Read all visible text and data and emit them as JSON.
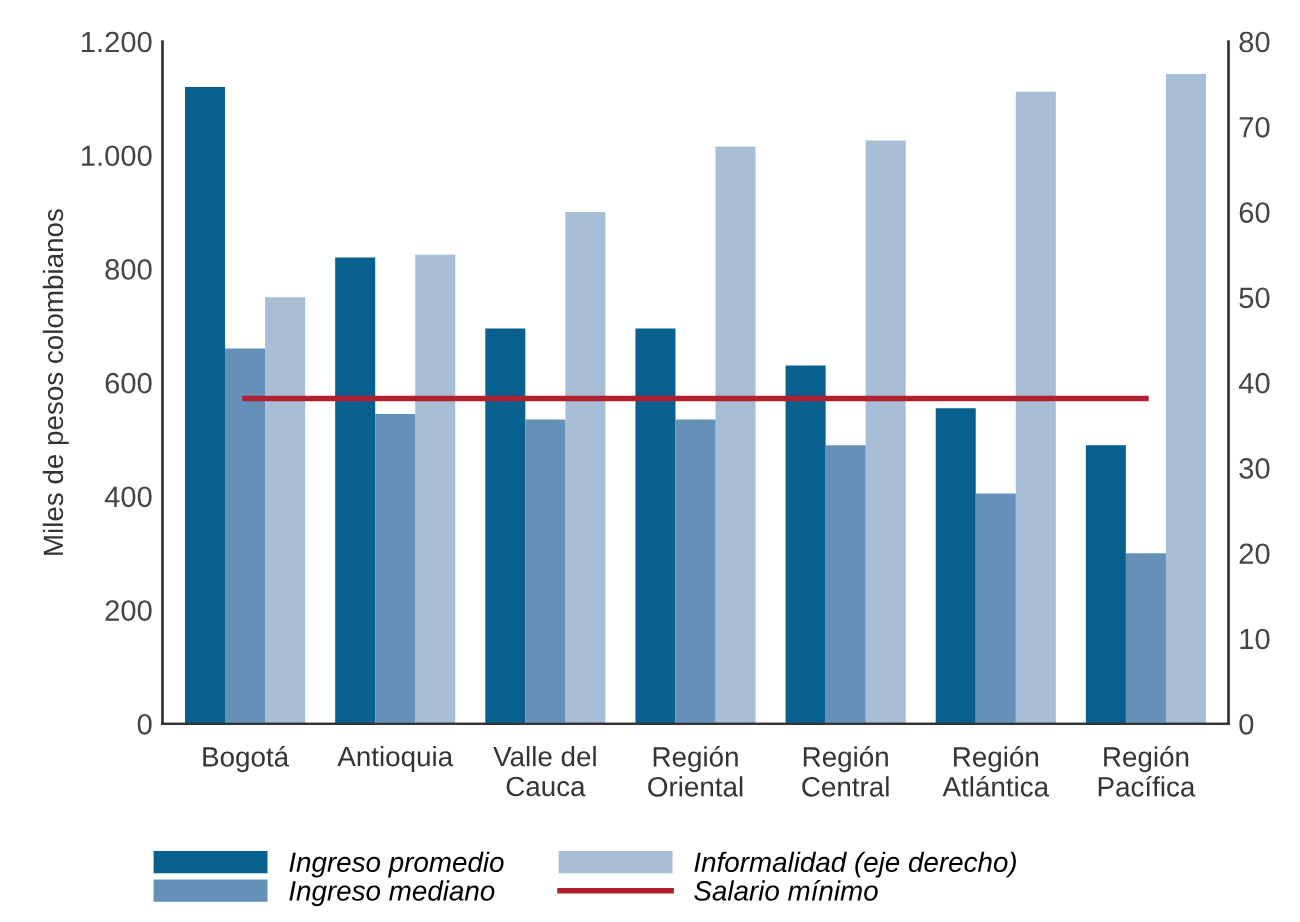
{
  "chart_data": {
    "type": "bar",
    "ylabel": "Miles de pesos colombianos",
    "categories": [
      "Bogotá",
      "Antioquia",
      "Valle del\nCauca",
      "Región\nOriental",
      "Región\nCentral",
      "Región\nAtlántica",
      "Región\nPacífica"
    ],
    "series": [
      {
        "name": "Ingreso promedio",
        "color": "#08608f",
        "values": [
          1120,
          820,
          695,
          695,
          630,
          555,
          490
        ]
      },
      {
        "name": "Ingreso mediano",
        "color": "#6590b8",
        "values": [
          660,
          545,
          535,
          535,
          490,
          405,
          300
        ]
      },
      {
        "name": "Informalidad (eje derecho)",
        "color": "#a8bdd6",
        "axis": "y2",
        "values": [
          50,
          55,
          60,
          67.7,
          68.4,
          74.1,
          76.2
        ]
      },
      {
        "name": "Salario mínimo",
        "color": "#b0202e",
        "type": "line",
        "values": [
          572,
          572,
          572,
          572,
          572,
          572,
          572
        ]
      }
    ],
    "ylim": [
      0,
      1200
    ],
    "yticks": [
      0,
      200,
      400,
      600,
      800,
      {
        "value": 1000,
        "label": "1.000"
      },
      {
        "value": 1200,
        "label": "1.200"
      }
    ],
    "y2lim": [
      0,
      80
    ],
    "y2ticks": [
      0,
      10,
      20,
      30,
      40,
      50,
      60,
      70,
      80
    ],
    "grid": false,
    "legend": "bottom"
  }
}
